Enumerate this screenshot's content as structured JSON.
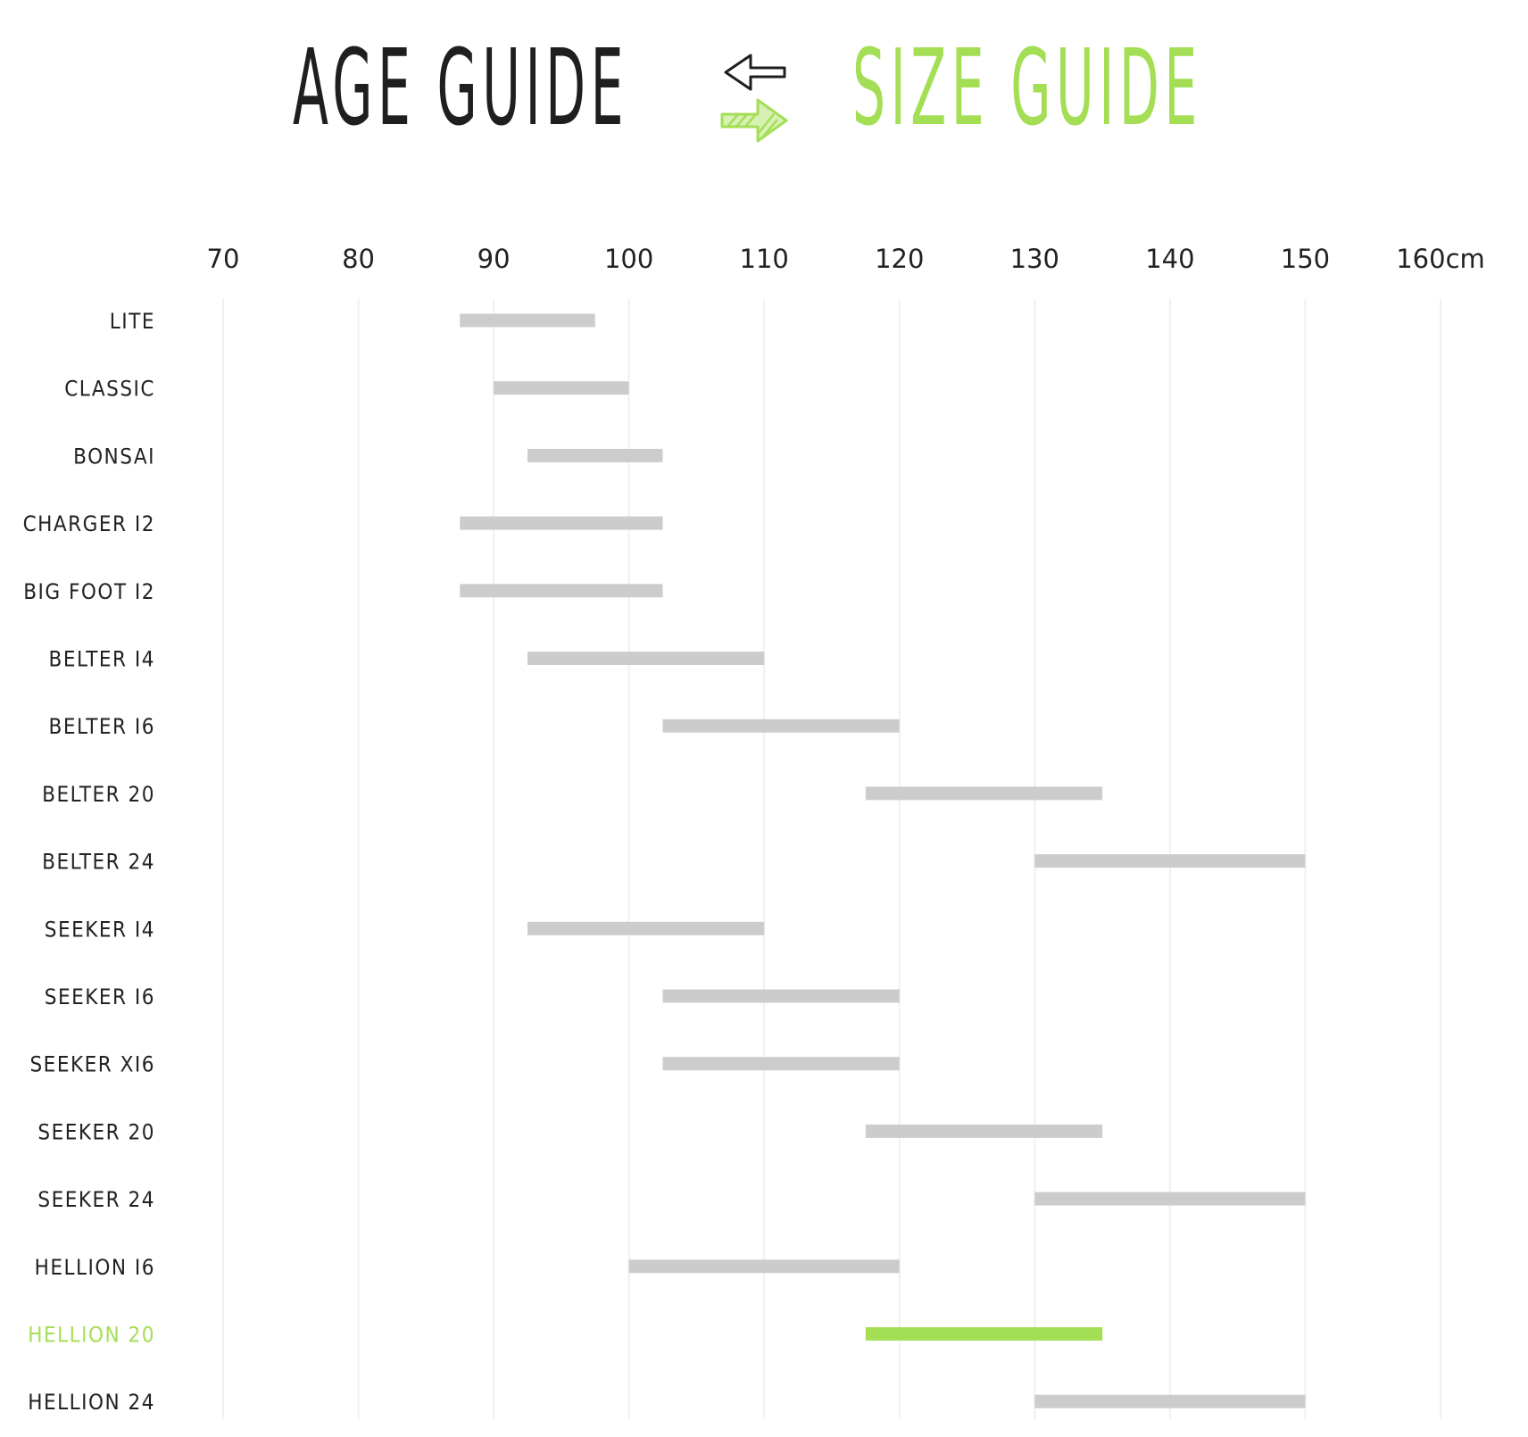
{
  "header": {
    "age_tab_label": "AGE GUIDE",
    "size_tab_label": "SIZE GUIDE",
    "active_tab": "size"
  },
  "colors": {
    "title_dark": "#1f1f1f",
    "accent_green": "#a4de55",
    "bar_gray": "#cccccc",
    "gridline": "#f0f0f0",
    "label_text": "#222222"
  },
  "icons": {
    "switch_left": "outline-left-arrow-icon",
    "switch_right": "hatched-green-right-arrow-icon"
  },
  "chart_data": {
    "type": "bar",
    "orientation": "horizontal-range",
    "x_unit": "cm",
    "xlim": [
      70,
      160
    ],
    "ticks": [
      {
        "value": 70,
        "label": "70"
      },
      {
        "value": 80,
        "label": "80"
      },
      {
        "value": 90,
        "label": "90"
      },
      {
        "value": 100,
        "label": "100"
      },
      {
        "value": 110,
        "label": "110"
      },
      {
        "value": 120,
        "label": "120"
      },
      {
        "value": 130,
        "label": "130"
      },
      {
        "value": 140,
        "label": "140"
      },
      {
        "value": 150,
        "label": "150"
      },
      {
        "value": 160,
        "label": "160cm"
      }
    ],
    "grid": true,
    "highlighted": "HELLION 20",
    "rows": [
      {
        "label": "LITE",
        "min": 87.5,
        "max": 97.5
      },
      {
        "label": "CLASSIC",
        "min": 90,
        "max": 100
      },
      {
        "label": "BONSAI",
        "min": 92.5,
        "max": 102.5
      },
      {
        "label": "CHARGER I2",
        "min": 87.5,
        "max": 102.5
      },
      {
        "label": "BIG FOOT I2",
        "min": 87.5,
        "max": 102.5
      },
      {
        "label": "BELTER I4",
        "min": 92.5,
        "max": 110
      },
      {
        "label": "BELTER I6",
        "min": 102.5,
        "max": 120
      },
      {
        "label": "BELTER 20",
        "min": 117.5,
        "max": 135
      },
      {
        "label": "BELTER 24",
        "min": 130,
        "max": 150
      },
      {
        "label": "SEEKER I4",
        "min": 92.5,
        "max": 110
      },
      {
        "label": "SEEKER I6",
        "min": 102.5,
        "max": 120
      },
      {
        "label": "SEEKER XI6",
        "min": 102.5,
        "max": 120
      },
      {
        "label": "SEEKER 20",
        "min": 117.5,
        "max": 135
      },
      {
        "label": "SEEKER 24",
        "min": 130,
        "max": 150
      },
      {
        "label": "HELLION I6",
        "min": 100,
        "max": 120
      },
      {
        "label": "HELLION 20",
        "min": 117.5,
        "max": 135
      },
      {
        "label": "HELLION 24",
        "min": 130,
        "max": 150
      }
    ]
  }
}
